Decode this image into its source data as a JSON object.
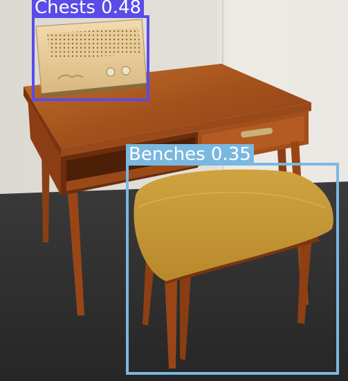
{
  "image": {
    "description_colors": {
      "wall": "#e7e4df",
      "floor": "#2e2e2e",
      "desk_wood": "#a5531f",
      "cushion": "#c79a36"
    }
  },
  "detections": [
    {
      "label": "Chests",
      "score": "0.48",
      "text": "Chests 0.48",
      "color": "#5b4be8"
    },
    {
      "label": "Benches",
      "score": "0.35",
      "text": "Benches 0.35",
      "color": "#7ab8e0"
    }
  ]
}
